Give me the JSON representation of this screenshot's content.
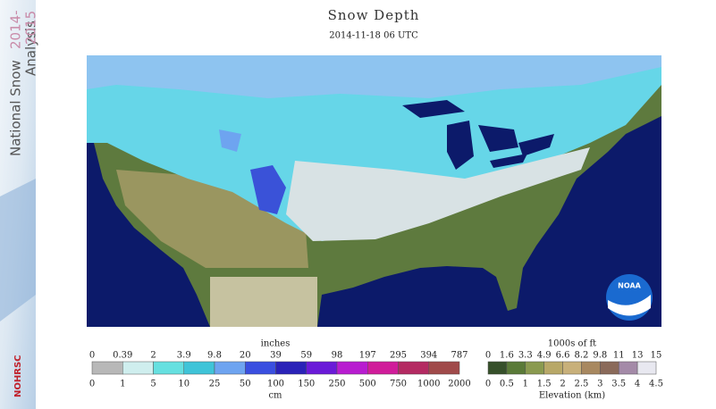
{
  "title": "Snow Depth",
  "subtitle": "2014-11-18 06 UTC",
  "banner": {
    "line1": "National Snow",
    "line2": "Analysis",
    "years1": "2014-",
    "years2": "2015",
    "logo": "NOHRSC"
  },
  "map": {
    "logo": "NOAA"
  },
  "snow_legend": {
    "unit_top": "inches",
    "unit_bottom": "cm",
    "top_labels": [
      "0",
      "0.39",
      "2",
      "3.9",
      "9.8",
      "20",
      "39",
      "59",
      "98",
      "197",
      "295",
      "394",
      "787"
    ],
    "bottom_labels": [
      "0",
      "1",
      "5",
      "10",
      "25",
      "50",
      "100",
      "150",
      "250",
      "500",
      "750",
      "1000",
      "2000"
    ],
    "colors": [
      "#b8b8b8",
      "#cfeeee",
      "#66e0e0",
      "#3fc4d8",
      "#6ea4f0",
      "#3a4fe0",
      "#2a22b8",
      "#6a1ad8",
      "#b81cd0",
      "#d01c9a",
      "#b42a62",
      "#a04a4a"
    ]
  },
  "elevation_legend": {
    "unit_top": "1000s of ft",
    "unit_bottom": "Elevation (km)",
    "top_labels": [
      "0",
      "1.6",
      "3.3",
      "4.9",
      "6.6",
      "8.2",
      "9.8",
      "11",
      "13",
      "15"
    ],
    "bottom_labels": [
      "0",
      "0.5",
      "1",
      "1.5",
      "2",
      "2.5",
      "3",
      "3.5",
      "4",
      "4.5"
    ],
    "colors": [
      "#36502a",
      "#5a7a38",
      "#8a9a50",
      "#b8a868",
      "#c8b07a",
      "#a88860",
      "#8a6a5a",
      "#a48aa8",
      "#e8e8f0"
    ]
  }
}
